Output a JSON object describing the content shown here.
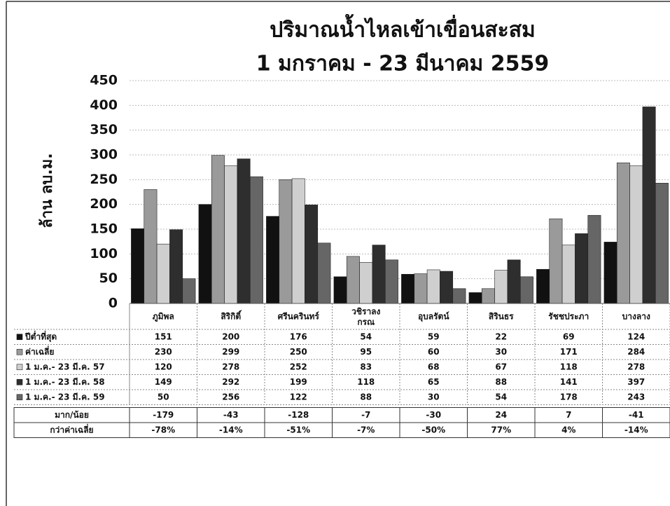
{
  "chart_data": {
    "type": "bar",
    "title": "ปริมาณน้ำไหลเข้าเขื่อนสะสม",
    "subtitle": "1 มกราคม - 23 มีนาคม 2559",
    "y_label": "ล้าน ลบ.ม.",
    "categories": [
      "ภูมิพล",
      "สิริกิติ์",
      "ศรีนครินทร์",
      "วชิราลง\nกรณ",
      "อุบลรัตน์",
      "สิรินธร",
      "รัชชประภา",
      "บางลาง"
    ],
    "series": [
      {
        "name": "ปีต่ำที่สุด",
        "color": "#111111",
        "values": [
          151,
          200,
          176,
          54,
          59,
          22,
          69,
          124
        ]
      },
      {
        "name": "ค่าเฉลี่ย",
        "color": "#9a9a9a",
        "values": [
          230,
          299,
          250,
          95,
          60,
          30,
          171,
          284
        ]
      },
      {
        "name": "1 ม.ค.- 23 มี.ค. 57",
        "color": "#cfcfcf",
        "values": [
          120,
          278,
          252,
          83,
          68,
          67,
          118,
          278
        ]
      },
      {
        "name": "1 ม.ค.- 23 มี.ค. 58",
        "color": "#2e2e2e",
        "values": [
          149,
          292,
          199,
          118,
          65,
          88,
          141,
          397
        ]
      },
      {
        "name": "1 ม.ค.- 23 มี.ค. 59",
        "color": "#666666",
        "values": [
          50,
          256,
          122,
          88,
          30,
          54,
          178,
          243
        ]
      }
    ],
    "difference": {
      "name": "มาก/น้อย",
      "values": [
        -179,
        -43,
        -128,
        -7,
        -30,
        24,
        7,
        -41
      ]
    },
    "percent": {
      "name": "กว่าค่าเฉลี่ย",
      "values": [
        -78,
        -14,
        -51,
        -7,
        -50,
        77,
        4,
        -14
      ],
      "value_labels": [
        "-78%",
        "-14%",
        "-51%",
        "-7%",
        "-50%",
        "77%",
        "4%",
        "-14%"
      ]
    },
    "ylim": [
      0,
      450
    ],
    "yticks": [
      0,
      50,
      100,
      150,
      200,
      250,
      300,
      350,
      400,
      450
    ],
    "grid": true
  }
}
